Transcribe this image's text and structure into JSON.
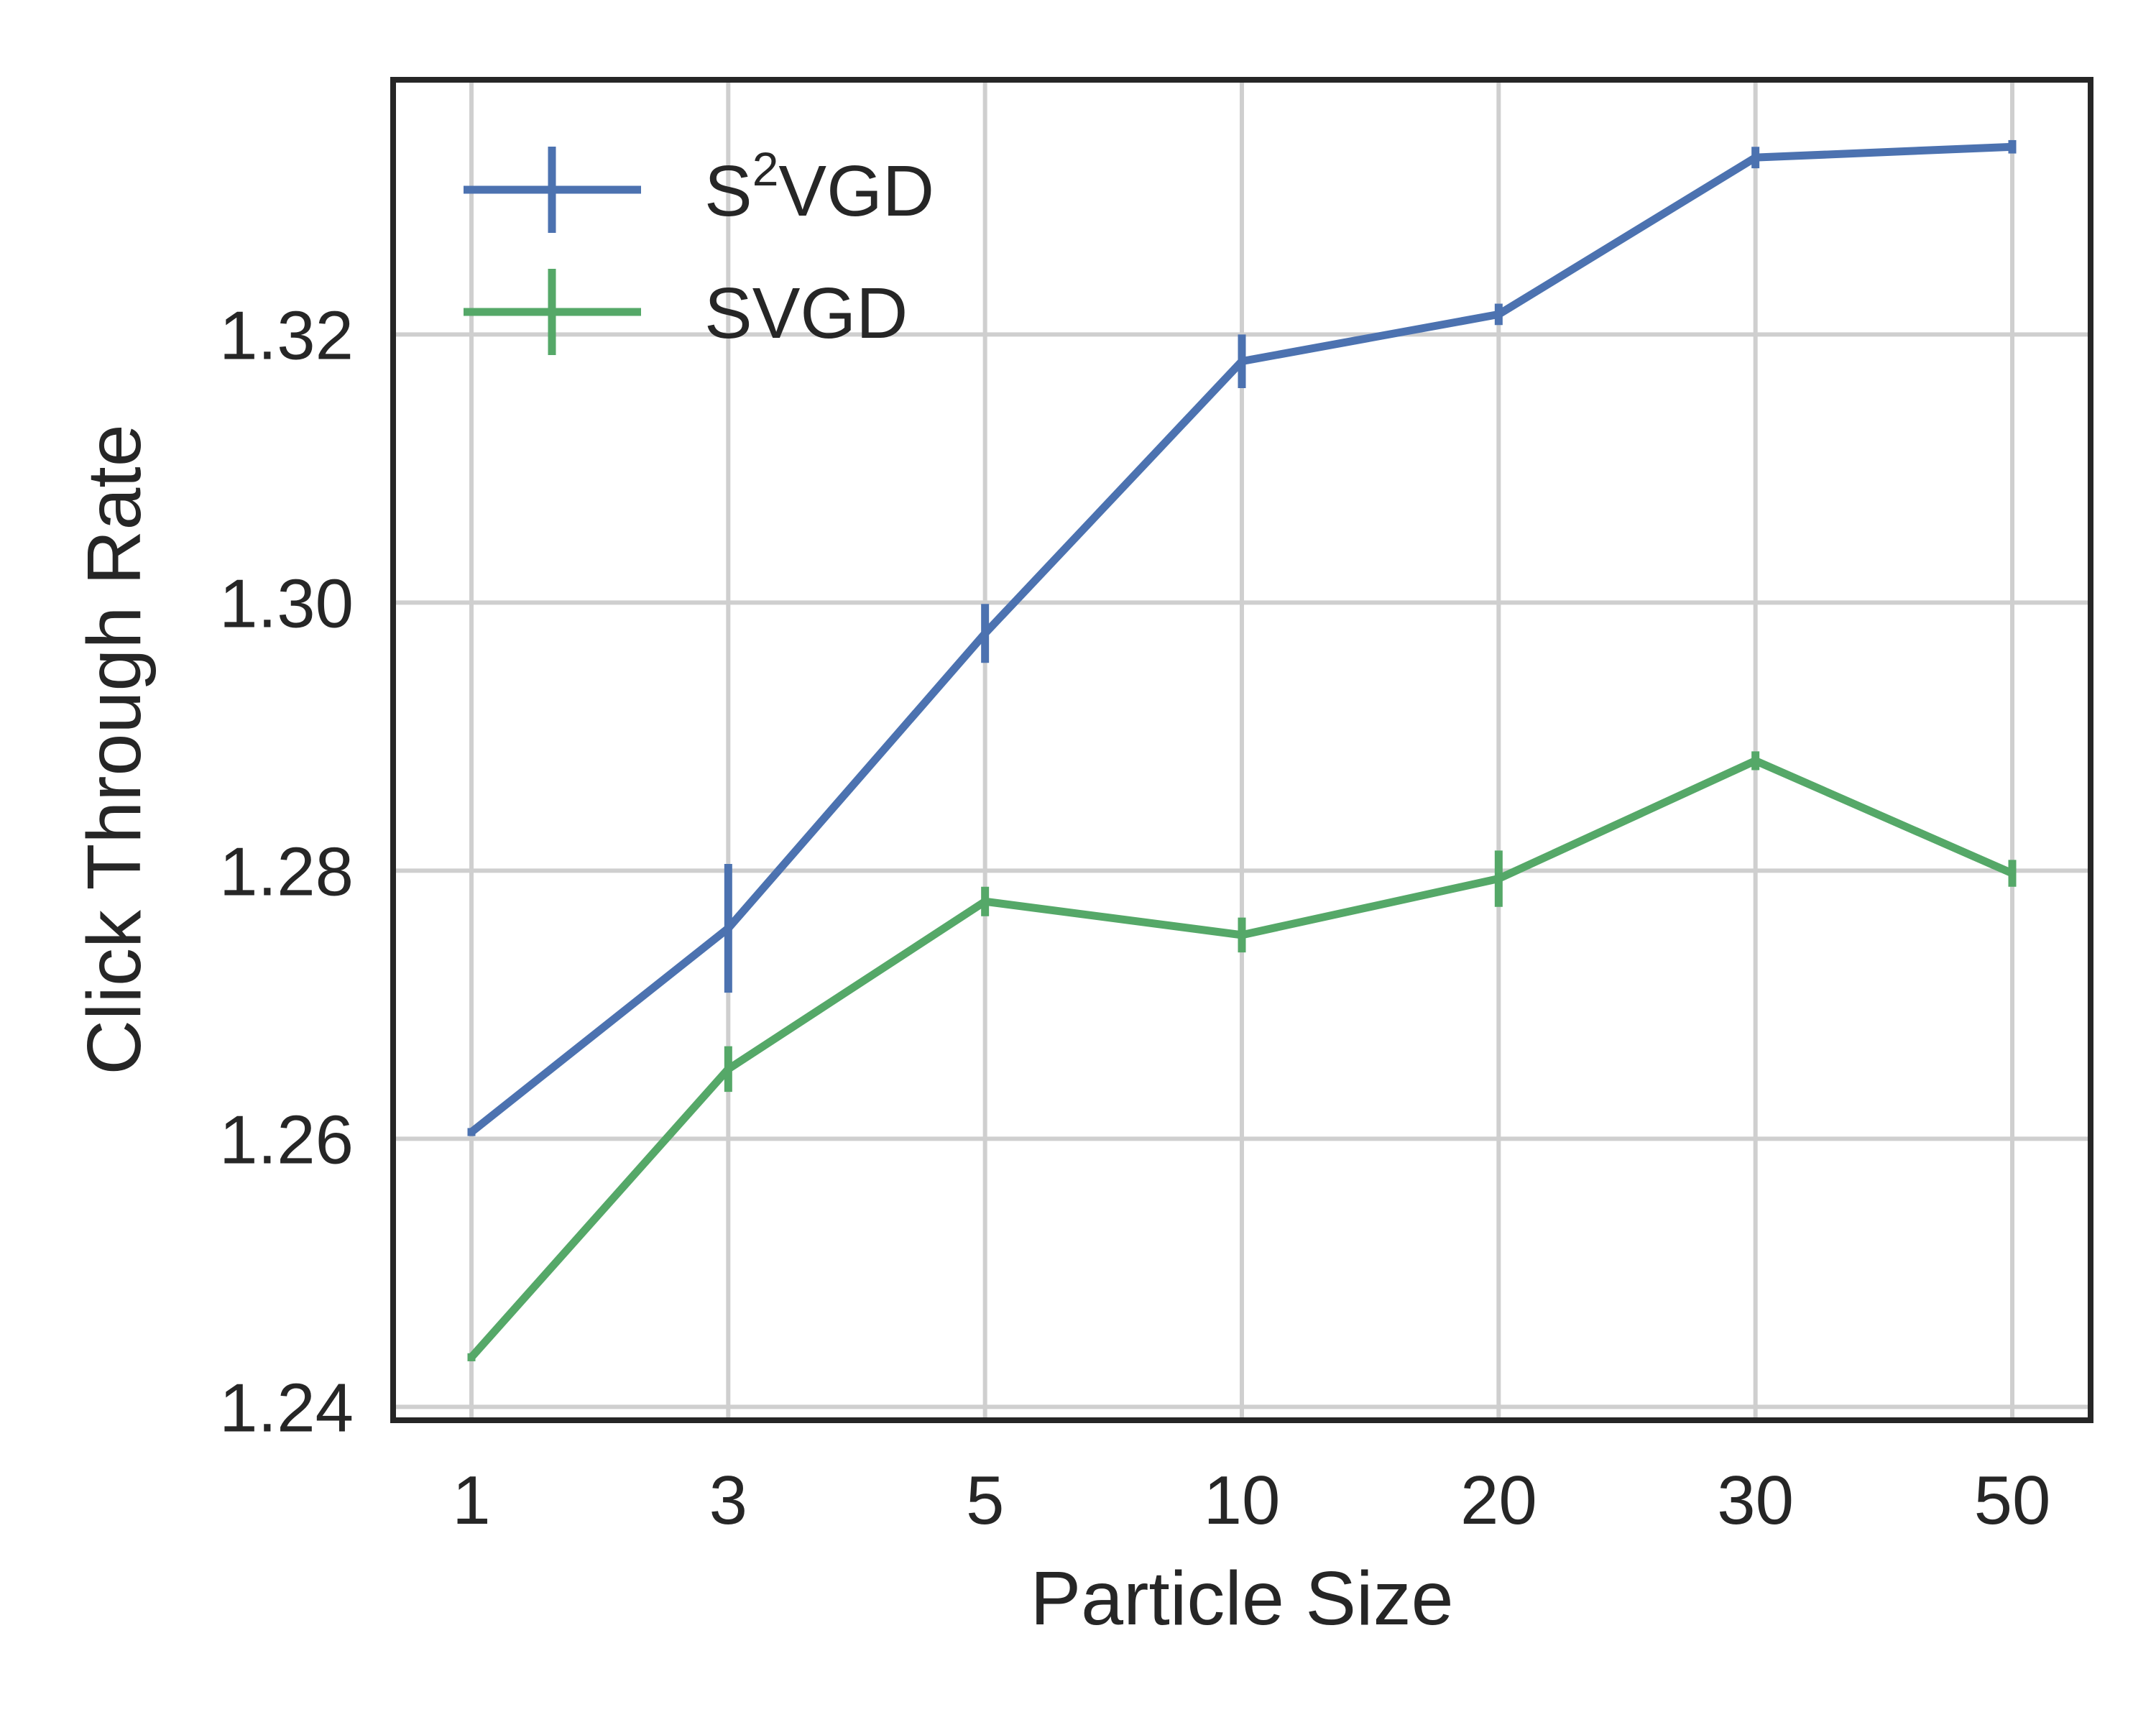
{
  "chart_data": {
    "type": "line",
    "title": "",
    "xlabel": "Particle Size",
    "ylabel": "Click Through Rate",
    "categories": [
      "1",
      "3",
      "5",
      "10",
      "20",
      "30",
      "50"
    ],
    "ylim": [
      1.239,
      1.339
    ],
    "yticks": [
      "1.24",
      "1.26",
      "1.28",
      "1.30",
      "1.32"
    ],
    "grid": true,
    "legend_position": "top-left",
    "series": [
      {
        "name": "S²VGD",
        "name_base": "S",
        "name_sup": "2",
        "name_rest": "VGD",
        "color": "#4c72b0",
        "values": [
          1.2605,
          1.2757,
          1.2977,
          1.318,
          1.3215,
          1.3332,
          1.334
        ],
        "errors": [
          0.0003,
          0.0048,
          0.0022,
          0.002,
          0.0008,
          0.0008,
          0.0005
        ]
      },
      {
        "name": "SVGD",
        "color": "#55a868",
        "values": [
          1.2437,
          1.2652,
          1.2777,
          1.2752,
          1.2794,
          1.2882,
          1.2798
        ],
        "errors": [
          0.0003,
          0.0017,
          0.0011,
          0.0013,
          0.0021,
          0.0007,
          0.001
        ]
      }
    ]
  }
}
